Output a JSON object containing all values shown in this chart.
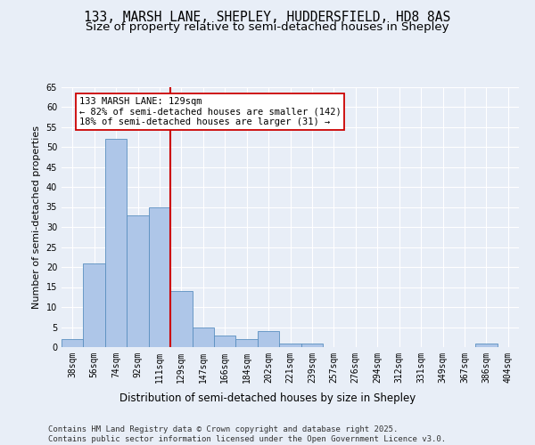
{
  "title1": "133, MARSH LANE, SHEPLEY, HUDDERSFIELD, HD8 8AS",
  "title2": "Size of property relative to semi-detached houses in Shepley",
  "xlabel": "Distribution of semi-detached houses by size in Shepley",
  "ylabel": "Number of semi-detached properties",
  "categories": [
    "38sqm",
    "56sqm",
    "74sqm",
    "92sqm",
    "111sqm",
    "129sqm",
    "147sqm",
    "166sqm",
    "184sqm",
    "202sqm",
    "221sqm",
    "239sqm",
    "257sqm",
    "276sqm",
    "294sqm",
    "312sqm",
    "331sqm",
    "349sqm",
    "367sqm",
    "386sqm",
    "404sqm"
  ],
  "values": [
    2,
    21,
    52,
    33,
    35,
    14,
    5,
    3,
    2,
    4,
    1,
    1,
    0,
    0,
    0,
    0,
    0,
    0,
    0,
    1,
    0
  ],
  "bar_color": "#aec6e8",
  "bar_edge_color": "#5a8fc0",
  "vline_x_index": 5,
  "vline_color": "#cc0000",
  "annotation_title": "133 MARSH LANE: 129sqm",
  "annotation_line1": "← 82% of semi-detached houses are smaller (142)",
  "annotation_line2": "18% of semi-detached houses are larger (31) →",
  "annotation_box_color": "#ffffff",
  "annotation_box_edge": "#cc0000",
  "ylim": [
    0,
    65
  ],
  "yticks": [
    0,
    5,
    10,
    15,
    20,
    25,
    30,
    35,
    40,
    45,
    50,
    55,
    60,
    65
  ],
  "bg_color": "#e8eef7",
  "plot_bg_color": "#e8eef7",
  "footer1": "Contains HM Land Registry data © Crown copyright and database right 2025.",
  "footer2": "Contains public sector information licensed under the Open Government Licence v3.0.",
  "title1_fontsize": 10.5,
  "title2_fontsize": 9.5,
  "xlabel_fontsize": 8.5,
  "ylabel_fontsize": 8,
  "tick_fontsize": 7,
  "footer_fontsize": 6.5,
  "annot_fontsize": 7.5
}
